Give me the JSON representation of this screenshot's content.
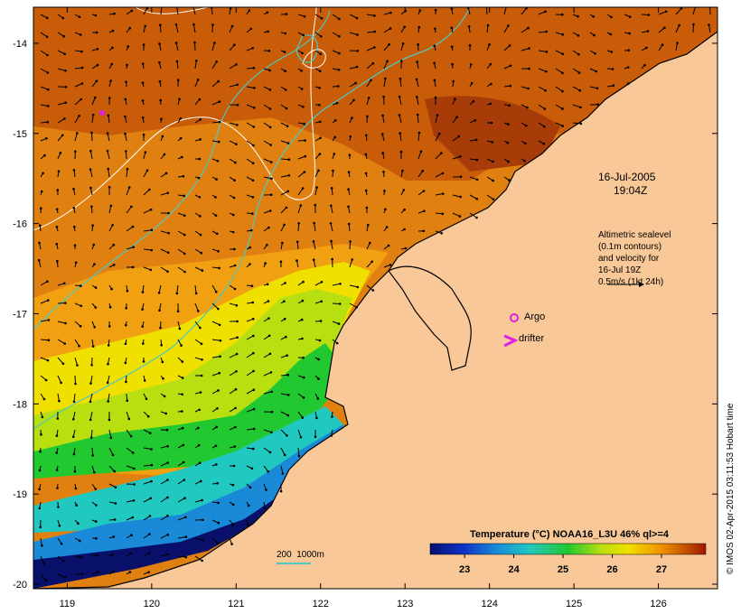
{
  "map": {
    "lon_ticks": [
      "119",
      "120",
      "121",
      "122",
      "123",
      "124",
      "125",
      "126"
    ],
    "lat_ticks": [
      "-14",
      "-15",
      "-16",
      "-17",
      "-18",
      "-19",
      "-20"
    ],
    "lon_range": [
      118.6,
      126.7
    ],
    "lat_range": [
      -20.05,
      -13.6
    ]
  },
  "annotations": {
    "date": "16-Jul-2005",
    "time": "19:04Z",
    "altimetry_lines": [
      "Altimetric sealevel",
      "(0.1m contours)",
      "and velocity for",
      "16-Jul 19Z",
      "0.5m/s (1kt 24h)"
    ],
    "argo_label": "Argo",
    "drifter_label": "drifter",
    "depth_legend": "200  1000m"
  },
  "colorbar": {
    "title": "Temperature (°C) NOAA16_L3U 46% ql>=4",
    "ticks": [
      "23",
      "24",
      "25",
      "26",
      "27"
    ],
    "range": [
      22.3,
      27.9
    ]
  },
  "credit": "© IMOS 02-Apr-2015 03:11:53 Hobart time",
  "colors": {
    "land": "#f8c898",
    "contour": "#ffffff",
    "bathymetry": "#4fc8c0",
    "marker": "#e020e0"
  }
}
